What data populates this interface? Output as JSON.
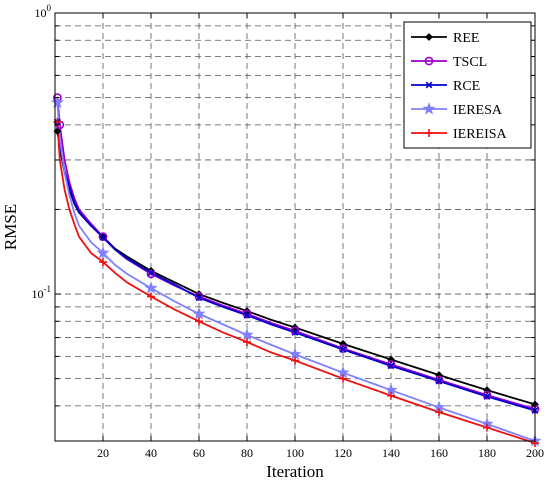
{
  "chart_data": {
    "type": "line",
    "xlabel": "Iteration",
    "ylabel": "RMSE",
    "xlim": [
      0,
      200
    ],
    "ylim": [
      0.03,
      1
    ],
    "yscale": "log",
    "grid": true,
    "grid_style": "dashed",
    "legend_position": "top-right",
    "xticks": [
      20,
      40,
      60,
      80,
      100,
      120,
      140,
      160,
      180,
      200
    ],
    "xtick_labels": [
      "20",
      "40",
      "60",
      "80",
      "100",
      "120",
      "140",
      "160",
      "180",
      "200"
    ],
    "yticks_major": [
      {
        "value": 1,
        "base": "10",
        "exponent": "0"
      },
      {
        "value": 0.1,
        "base": "10",
        "exponent": "-1"
      }
    ],
    "yticks_minor": [
      0.04,
      0.05,
      0.06,
      0.07,
      0.08,
      0.09,
      0.2,
      0.3,
      0.4,
      0.5,
      0.6,
      0.7,
      0.8,
      0.9
    ],
    "x": [
      1,
      2,
      4,
      6,
      8,
      10,
      15,
      20,
      25,
      30,
      40,
      50,
      60,
      70,
      80,
      90,
      100,
      120,
      140,
      160,
      180,
      200
    ],
    "series": [
      {
        "name": "REE",
        "color": "#000000",
        "marker": "diamond",
        "marker_x": [
          1,
          20,
          40,
          60,
          80,
          100,
          120,
          140,
          160,
          180,
          200
        ],
        "values": [
          0.38,
          0.33,
          0.27,
          0.235,
          0.21,
          0.195,
          0.175,
          0.16,
          0.145,
          0.136,
          0.121,
          0.11,
          0.1,
          0.093,
          0.087,
          0.081,
          0.076,
          0.0665,
          0.0585,
          0.0515,
          0.0455,
          0.0405
        ]
      },
      {
        "name": "TSCL",
        "color": "#9900cc",
        "marker": "circle",
        "marker_x": [
          1,
          2,
          20,
          40,
          60,
          80,
          100,
          120,
          140,
          160,
          180,
          200
        ],
        "values": [
          0.5,
          0.4,
          0.3,
          0.25,
          0.22,
          0.2,
          0.178,
          0.16,
          0.144,
          0.133,
          0.118,
          0.107,
          0.098,
          0.091,
          0.085,
          0.079,
          0.074,
          0.064,
          0.0562,
          0.0495,
          0.0437,
          0.039
        ]
      },
      {
        "name": "RCE",
        "color": "#0000cc",
        "marker": "x",
        "marker_x": [
          1,
          20,
          40,
          60,
          80,
          100,
          120,
          140,
          160,
          180,
          200
        ],
        "values": [
          0.41,
          0.34,
          0.275,
          0.24,
          0.212,
          0.196,
          0.175,
          0.159,
          0.144,
          0.134,
          0.119,
          0.108,
          0.097,
          0.09,
          0.084,
          0.078,
          0.073,
          0.0635,
          0.0555,
          0.049,
          0.0432,
          0.0385
        ]
      },
      {
        "name": "IERESA",
        "color": "#8080ff",
        "marker": "star",
        "marker_x": [
          1,
          20,
          40,
          60,
          80,
          100,
          120,
          140,
          160,
          180,
          200
        ],
        "values": [
          0.48,
          0.36,
          0.27,
          0.225,
          0.195,
          0.175,
          0.153,
          0.14,
          0.127,
          0.118,
          0.105,
          0.094,
          0.085,
          0.078,
          0.0715,
          0.066,
          0.061,
          0.0525,
          0.0455,
          0.0395,
          0.0345,
          0.03
        ]
      },
      {
        "name": "IEREISA",
        "color": "#ee1111",
        "marker": "plus",
        "marker_x": [
          1,
          20,
          40,
          60,
          80,
          100,
          120,
          140,
          160,
          180,
          200
        ],
        "values": [
          0.41,
          0.3,
          0.235,
          0.2,
          0.178,
          0.16,
          0.14,
          0.13,
          0.119,
          0.11,
          0.098,
          0.088,
          0.08,
          0.073,
          0.0675,
          0.062,
          0.058,
          0.05,
          0.0435,
          0.038,
          0.0335,
          0.0295
        ]
      }
    ]
  }
}
